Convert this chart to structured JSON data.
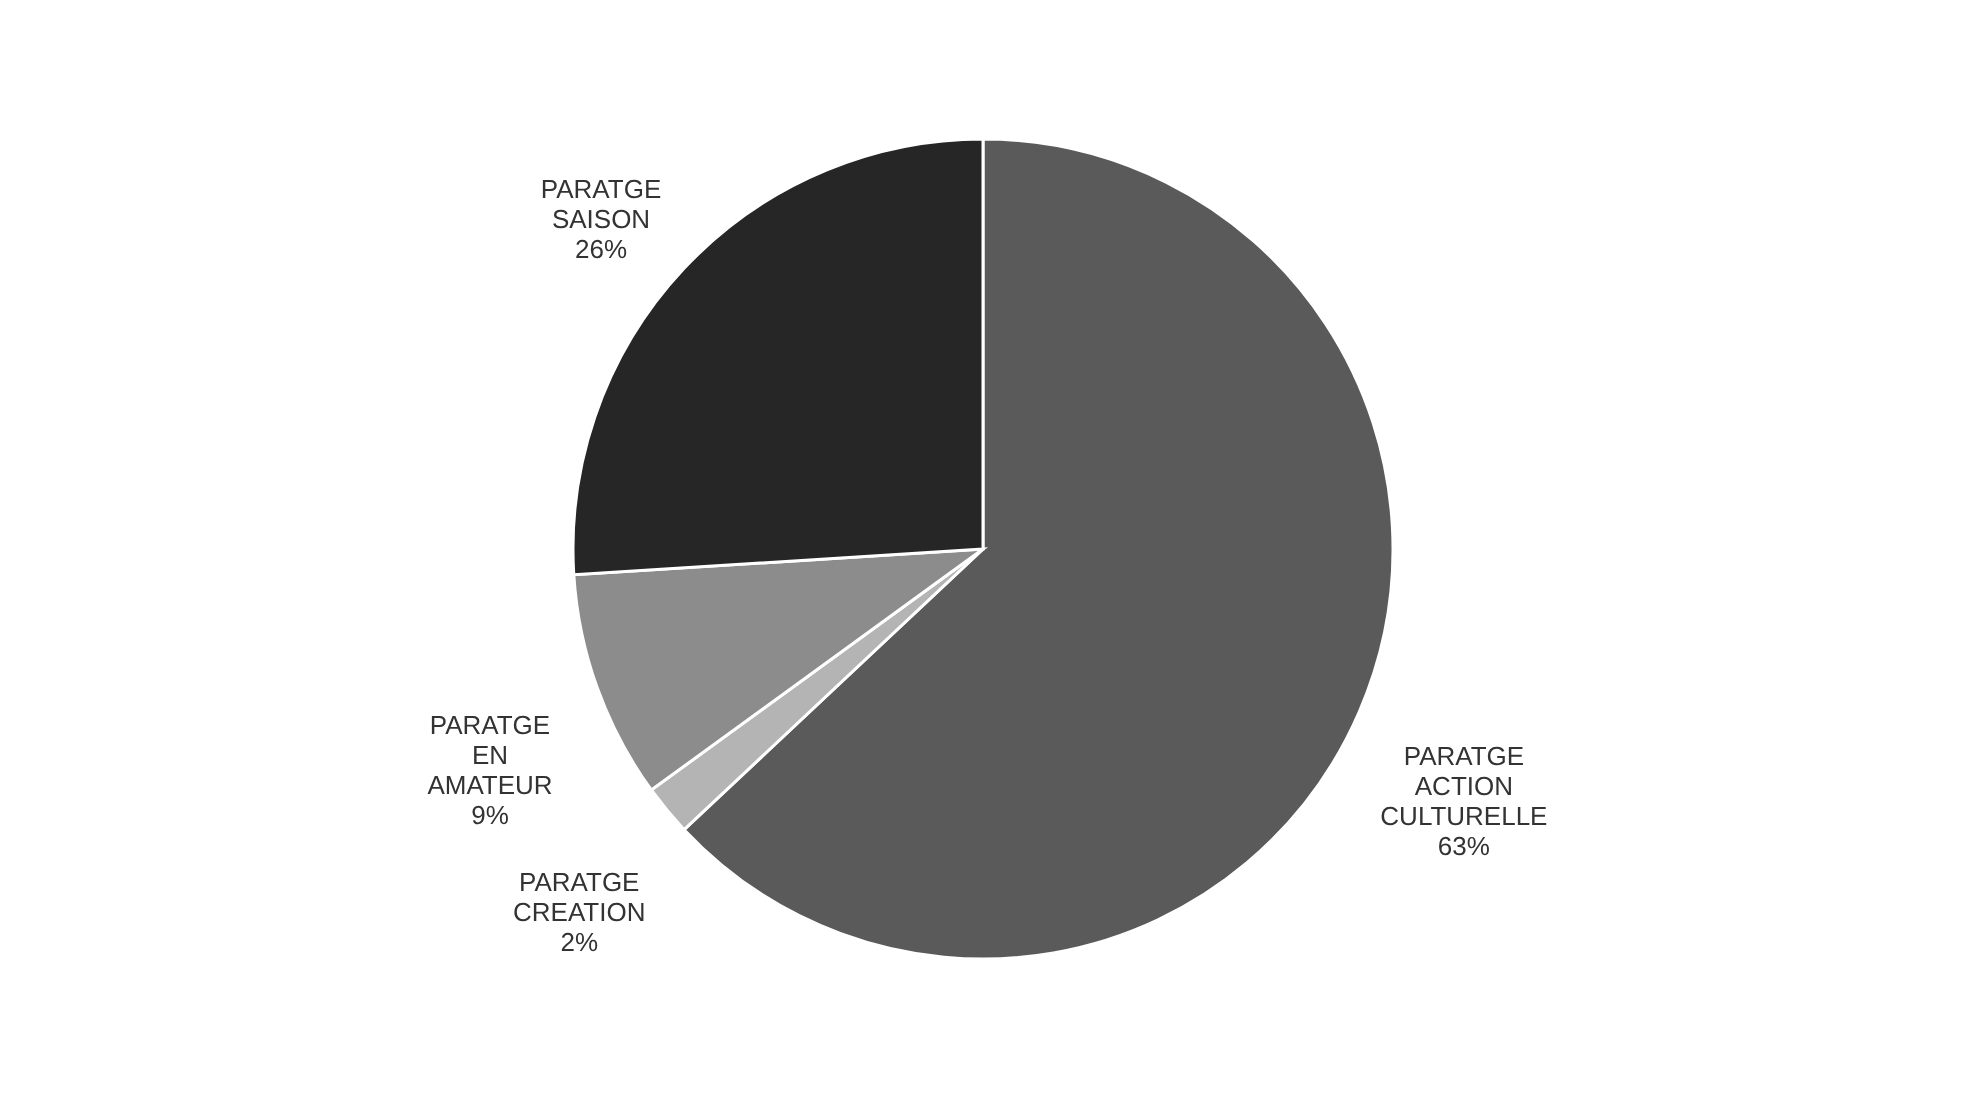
{
  "chart_data": {
    "type": "pie",
    "categories": [
      "PARATGE ACTION CULTURELLE",
      "PARATGE CREATION",
      "PARATGE EN AMATEUR",
      "PARATGE SAISON"
    ],
    "values": [
      63,
      2,
      9,
      26
    ],
    "value_labels": [
      "63%",
      "2%",
      "9%",
      "26%"
    ],
    "colors": [
      "#5a5a5a",
      "#b4b4b4",
      "#8c8c8c",
      "#262626"
    ]
  }
}
